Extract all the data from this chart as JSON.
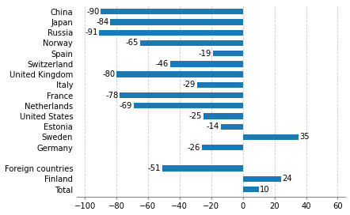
{
  "categories": [
    "Total",
    "Finland",
    "Foreign countries",
    "",
    "Germany",
    "Sweden",
    "Estonia",
    "United States",
    "Netherlands",
    "France",
    "Italy",
    "United Kingdom",
    "Switzerland",
    "Spain",
    "Norway",
    "Russia",
    "Japan",
    "China"
  ],
  "values": [
    10,
    24,
    -51,
    null,
    -26,
    35,
    -14,
    -25,
    -69,
    -78,
    -29,
    -80,
    -46,
    -19,
    -65,
    -91,
    -84,
    -90
  ],
  "bar_color": "#1a7ab5",
  "xlim": [
    -105,
    65
  ],
  "xticks": [
    -100,
    -80,
    -60,
    -40,
    -20,
    0,
    20,
    40,
    60
  ],
  "grid_color": "#c8c8c8",
  "label_fontsize": 7.2,
  "tick_fontsize": 7.2,
  "bar_height": 0.55,
  "figsize": [
    4.42,
    2.72
  ],
  "dpi": 100
}
